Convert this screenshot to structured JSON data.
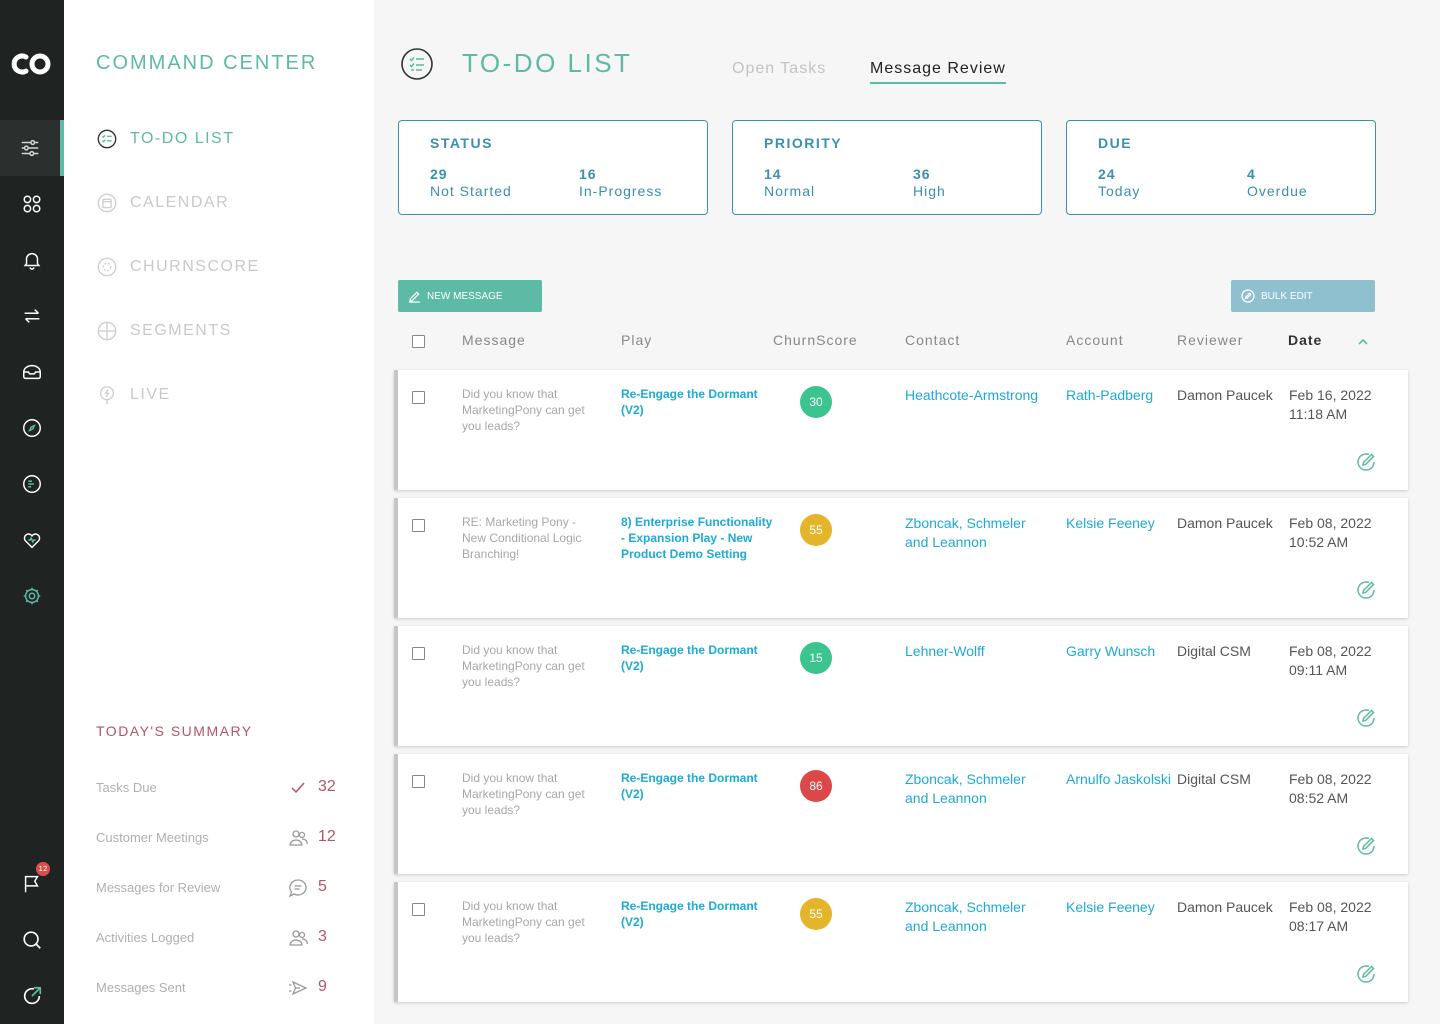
{
  "brand": {
    "logo_text": "CO"
  },
  "notifications_count": "12",
  "nav": {
    "title": "COMMAND CENTER",
    "items": [
      {
        "label": "TO-DO LIST",
        "icon": "todo-icon"
      },
      {
        "label": "CALENDAR",
        "icon": "calendar-icon"
      },
      {
        "label": "CHURNSCORE",
        "icon": "churnscore-icon"
      },
      {
        "label": "SEGMENTS",
        "icon": "segments-icon"
      },
      {
        "label": "LIVE",
        "icon": "live-icon"
      }
    ]
  },
  "summary": {
    "title": "TODAY'S SUMMARY",
    "items": [
      {
        "label": "Tasks Due",
        "value": "32",
        "icon": "check-icon"
      },
      {
        "label": "Customer Meetings",
        "value": "12",
        "icon": "people-icon"
      },
      {
        "label": "Messages for Review",
        "value": "5",
        "icon": "chat-icon"
      },
      {
        "label": "Activities Logged",
        "value": "3",
        "icon": "people-icon"
      },
      {
        "label": "Messages Sent",
        "value": "9",
        "icon": "send-icon"
      }
    ]
  },
  "page": {
    "title": "TO-DO LIST",
    "tabs": [
      {
        "label": "Open Tasks",
        "active": false
      },
      {
        "label": "Message Review",
        "active": true
      }
    ]
  },
  "cards": [
    {
      "title": "STATUS",
      "stats": [
        {
          "value": "29",
          "label": "Not Started"
        },
        {
          "value": "16",
          "label": "In-Progress"
        }
      ]
    },
    {
      "title": "PRIORITY",
      "stats": [
        {
          "value": "14",
          "label": "Normal"
        },
        {
          "value": "36",
          "label": "High"
        }
      ]
    },
    {
      "title": "DUE",
      "stats": [
        {
          "value": "24",
          "label": "Today"
        },
        {
          "value": "4",
          "label": "Overdue"
        }
      ]
    }
  ],
  "actions": {
    "new_message": "NEW MESSAGE",
    "bulk_edit": "BULK EDIT"
  },
  "table": {
    "headers": {
      "message": "Message",
      "play": "Play",
      "churnscore": "ChurnScore",
      "contact": "Contact",
      "account": "Account",
      "reviewer": "Reviewer",
      "date": "Date"
    },
    "sort_column": "Date",
    "sort_direction": "ascending",
    "rows": [
      {
        "message": "Did you know that MarketingPony can get you leads?",
        "play": "Re-Engage the Dormant (V2)",
        "score": "30",
        "score_color": "#3cc48f",
        "contact": "Heathcote-Armstrong",
        "account": "Rath-Padberg",
        "reviewer": "Damon Paucek",
        "date": "Feb 16, 2022",
        "time": "11:18 AM"
      },
      {
        "message": "RE: Marketing Pony - New Conditional Logic Branching!",
        "play": "8) Enterprise Functionality - Expansion Play - New Product Demo Setting",
        "score": "55",
        "score_color": "#e4b52a",
        "contact": "Zboncak, Schmeler and Leannon",
        "account": "Kelsie Feeney",
        "reviewer": "Damon Paucek",
        "date": "Feb 08, 2022",
        "time": "10:52 AM"
      },
      {
        "message": "Did you know that MarketingPony can get you leads?",
        "play": "Re-Engage the Dormant (V2)",
        "score": "15",
        "score_color": "#3cc48f",
        "contact": "Lehner-Wolff",
        "account": "Garry Wunsch",
        "reviewer": "Digital CSM",
        "date": "Feb 08, 2022",
        "time": "09:11 AM"
      },
      {
        "message": "Did you know that MarketingPony can get you leads?",
        "play": "Re-Engage the Dormant (V2)",
        "score": "86",
        "score_color": "#dc4848",
        "contact": "Zboncak, Schmeler and Leannon",
        "account": "Arnulfo Jaskolski",
        "reviewer": "Digital CSM",
        "date": "Feb 08, 2022",
        "time": "08:52 AM"
      },
      {
        "message": "Did you know that MarketingPony can get you leads?",
        "play": "Re-Engage the Dormant (V2)",
        "score": "55",
        "score_color": "#e4b52a",
        "contact": "Zboncak, Schmeler and Leannon",
        "account": "Kelsie Feeney",
        "reviewer": "Damon Paucek",
        "date": "Feb 08, 2022",
        "time": "08:17 AM"
      }
    ]
  },
  "colors": {
    "accent": "#5dbaa4",
    "link": "#1eaad6",
    "card_border": "#3b8fb0",
    "summary": "#b55568",
    "rail": "#1f2422"
  }
}
